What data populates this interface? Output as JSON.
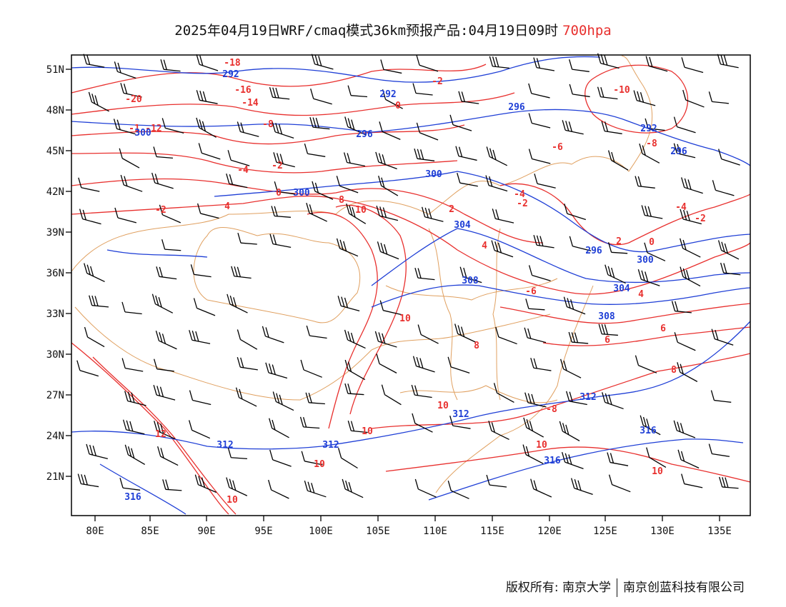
{
  "header": {
    "title": "2025年04月19日WRF/cmaq模式36km预报产品:04月19日09时",
    "level": "700hpa",
    "level_color": "#e8302e"
  },
  "map": {
    "lon_labels": [
      "80E",
      "85E",
      "90E",
      "95E",
      "100E",
      "105E",
      "110E",
      "115E",
      "120E",
      "125E",
      "130E",
      "135E"
    ],
    "lat_labels": [
      "51N",
      "48N",
      "45N",
      "42N",
      "39N",
      "36N",
      "33N",
      "30N",
      "27N",
      "24N",
      "21N"
    ],
    "temperature_color": "#e8302e",
    "height_color": "#1f3fd6",
    "boundary_color": "#e0a060",
    "temperature_labels": [
      "-18",
      "-16",
      "-14",
      "-12",
      "-10",
      "-8",
      "-6",
      "-4",
      "-2",
      "0",
      "2",
      "4",
      "6",
      "8",
      "10",
      "12",
      "-20",
      "-1"
    ],
    "height_labels": [
      "292",
      "296",
      "300",
      "304",
      "308",
      "312",
      "316"
    ]
  },
  "footer": {
    "copyright": "版权所有: 南京大学",
    "company": "南京创蓝科技有限公司"
  }
}
